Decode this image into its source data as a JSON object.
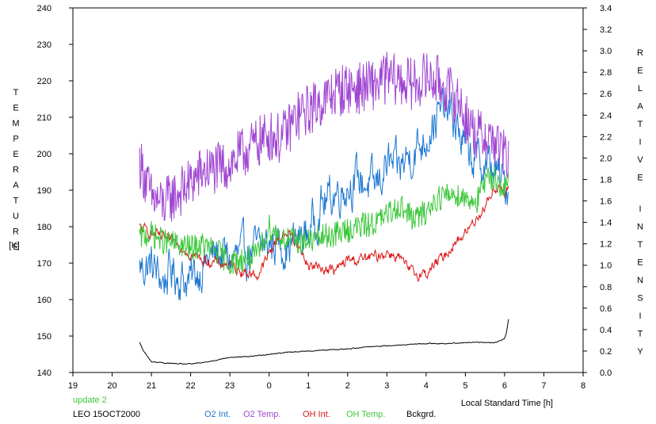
{
  "chart_data": {
    "type": "line",
    "xlabel": "Local Standard Time [h]",
    "ylabel_left": "TEMPERATURE",
    "ylabel_left_unit": "[K]",
    "ylabel_right": "RELATIVE INTENSITY",
    "x_ticks": [
      "19",
      "20",
      "21",
      "22",
      "23",
      "0",
      "1",
      "2",
      "3",
      "4",
      "5",
      "6",
      "7",
      "8"
    ],
    "xlim": [
      19,
      32
    ],
    "ylim_left": [
      140,
      240
    ],
    "ylim_right": [
      0.0,
      3.4
    ],
    "y_ticks_left": [
      "140",
      "150",
      "160",
      "170",
      "180",
      "190",
      "200",
      "210",
      "220",
      "230",
      "240"
    ],
    "y_ticks_right": [
      "0.0",
      "0.2",
      "0.4",
      "0.6",
      "0.8",
      "1.0",
      "1.2",
      "1.4",
      "1.6",
      "1.8",
      "2.0",
      "2.2",
      "2.4",
      "2.6",
      "2.8",
      "3.0",
      "3.2",
      "3.4"
    ],
    "grid": false,
    "legend_position": "bottom",
    "annotation_update": "update 2",
    "annotation_station": "LEO 15OCT2000",
    "series": [
      {
        "name": "O2 Int.",
        "axis": "right",
        "color": "#1e78d2",
        "noise": 0.4,
        "x": [
          20.7,
          21.0,
          21.3,
          21.5,
          21.8,
          22.0,
          22.3,
          22.7,
          23.0,
          23.3,
          23.7,
          24.0,
          24.2,
          24.5,
          24.8,
          25.0,
          25.3,
          25.7,
          26.0,
          26.3,
          26.7,
          27.0,
          27.3,
          27.5,
          27.8,
          28.0,
          28.2,
          28.5,
          28.7,
          29.0,
          29.3,
          29.5,
          29.7,
          30.0,
          30.1
        ],
        "y": [
          0.98,
          1.0,
          0.85,
          0.95,
          0.88,
          0.85,
          1.0,
          1.12,
          1.05,
          1.1,
          1.15,
          1.2,
          1.22,
          1.18,
          1.25,
          1.3,
          1.55,
          1.68,
          1.75,
          1.8,
          1.72,
          1.95,
          1.88,
          2.0,
          2.1,
          2.2,
          2.35,
          2.45,
          2.35,
          2.1,
          1.95,
          1.95,
          1.9,
          1.75,
          1.72
        ]
      },
      {
        "name": "O2 Temp.",
        "axis": "left",
        "color": "#a046d2",
        "noise": 8,
        "x": [
          20.7,
          21.0,
          21.3,
          21.5,
          21.8,
          22.0,
          22.3,
          22.7,
          23.0,
          23.3,
          23.7,
          24.0,
          24.3,
          24.7,
          25.0,
          25.3,
          25.7,
          26.0,
          26.3,
          26.7,
          27.0,
          27.3,
          27.7,
          28.0,
          28.3,
          28.5,
          28.8,
          29.0,
          29.3,
          29.5,
          29.7,
          30.0,
          30.1
        ],
        "y": [
          198,
          188,
          186,
          188,
          190,
          192,
          195,
          196,
          197,
          200,
          203,
          205,
          204,
          210,
          212,
          214,
          217,
          218,
          218,
          219,
          221,
          220,
          219,
          221,
          220,
          218,
          215,
          210,
          205,
          205,
          204,
          200,
          197
        ]
      },
      {
        "name": "OH Int.",
        "axis": "right",
        "color": "#dc1414",
        "noise": 0.1,
        "x": [
          20.7,
          21.0,
          21.3,
          21.7,
          22.0,
          22.3,
          22.7,
          23.0,
          23.3,
          23.7,
          24.0,
          24.2,
          24.5,
          24.7,
          25.0,
          25.3,
          25.7,
          26.0,
          26.3,
          26.7,
          27.0,
          27.3,
          27.5,
          27.7,
          28.0,
          28.2,
          28.5,
          28.7,
          29.0,
          29.3,
          29.5,
          29.7,
          29.85,
          30.0,
          30.1
        ],
        "y": [
          1.35,
          1.3,
          1.25,
          1.2,
          1.1,
          1.05,
          1.02,
          1.0,
          0.95,
          0.9,
          1.1,
          1.25,
          1.3,
          1.2,
          1.0,
          0.98,
          0.95,
          1.05,
          1.05,
          1.08,
          1.12,
          1.08,
          0.98,
          0.92,
          0.92,
          1.0,
          1.1,
          1.2,
          1.3,
          1.45,
          1.55,
          1.7,
          1.75,
          1.65,
          1.7
        ]
      },
      {
        "name": "OH Temp.",
        "axis": "left",
        "color": "#3cc83c",
        "noise": 4,
        "x": [
          20.7,
          21.0,
          21.3,
          21.7,
          22.0,
          22.3,
          22.7,
          23.0,
          23.3,
          23.7,
          24.0,
          24.3,
          24.7,
          25.0,
          25.3,
          25.7,
          26.0,
          26.3,
          26.7,
          27.0,
          27.3,
          27.7,
          28.0,
          28.3,
          28.7,
          29.0,
          29.3,
          29.5,
          29.7,
          30.0,
          30.1
        ],
        "y": [
          177,
          178,
          176,
          175,
          174,
          175,
          173,
          170,
          171,
          172,
          180,
          177,
          176,
          176,
          177,
          178,
          179,
          180,
          181,
          183,
          186,
          182,
          184,
          188,
          189,
          188,
          187,
          192,
          194,
          190,
          192
        ]
      },
      {
        "name": "Bckgrd.",
        "axis": "right",
        "color": "#000000",
        "noise": 0.008,
        "x": [
          20.7,
          20.8,
          21.0,
          21.3,
          21.7,
          22.0,
          22.3,
          22.7,
          23.0,
          23.5,
          24.0,
          24.5,
          25.0,
          25.5,
          26.0,
          26.5,
          27.0,
          27.5,
          28.0,
          28.5,
          29.0,
          29.5,
          29.8,
          30.0,
          30.05,
          30.1
        ],
        "y": [
          0.28,
          0.2,
          0.1,
          0.09,
          0.08,
          0.08,
          0.09,
          0.12,
          0.14,
          0.15,
          0.17,
          0.19,
          0.2,
          0.21,
          0.22,
          0.24,
          0.25,
          0.26,
          0.27,
          0.27,
          0.28,
          0.28,
          0.28,
          0.32,
          0.38,
          0.5
        ]
      }
    ]
  }
}
